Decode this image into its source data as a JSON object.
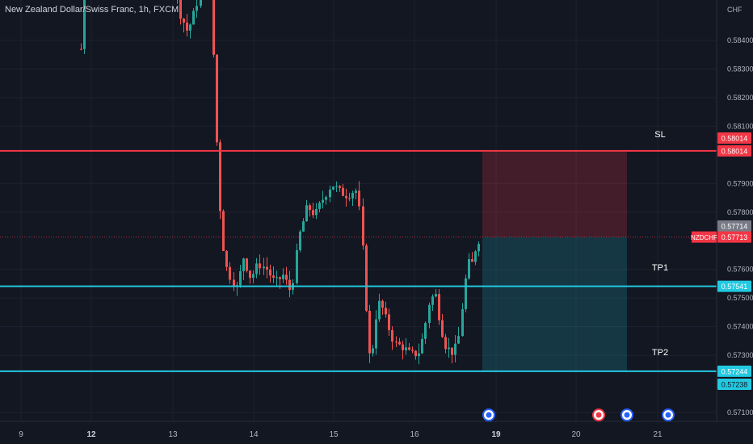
{
  "header": {
    "title": "New Zealand Dollar/Swiss Franc, 1h, FXCM"
  },
  "price_axis": {
    "currency": "CHF",
    "ticks": [
      "0.58400",
      "0.58300",
      "0.58200",
      "0.58100",
      "0.57900",
      "0.57800",
      "0.57600",
      "0.57500",
      "0.57400",
      "0.57300",
      "0.57100"
    ]
  },
  "time_axis": {
    "ticks": [
      {
        "label": "9",
        "bold": false
      },
      {
        "label": "12",
        "bold": true
      },
      {
        "label": "13",
        "bold": false
      },
      {
        "label": "14",
        "bold": false
      },
      {
        "label": "15",
        "bold": false
      },
      {
        "label": "16",
        "bold": false
      },
      {
        "label": "19",
        "bold": true
      },
      {
        "label": "20",
        "bold": false
      },
      {
        "label": "21",
        "bold": false
      }
    ]
  },
  "levels": [
    {
      "name": "SL",
      "price": 0.58014,
      "badge": "0.58014",
      "color": "#f23645"
    },
    {
      "name": "TP1",
      "price": 0.57541,
      "badge": "0.57541",
      "color": "#22c9e0"
    },
    {
      "name": "TP2",
      "price": 0.57244,
      "badge": "0.57244",
      "color": "#22c9e0"
    }
  ],
  "current": {
    "symbol": "NZDCHF",
    "price": 0.57713,
    "badge": "0.57713",
    "last_close": "0.57714"
  },
  "extra_badges": [
    {
      "badge": "0.58014",
      "price": 0.581,
      "color": "#f23645"
    },
    {
      "badge": "0.57238",
      "price": 0.5722,
      "color": "#22c9e0"
    }
  ],
  "colors": {
    "up": "#26a69a",
    "down": "#ef5350",
    "bg": "#131722",
    "grid": "#1f2433",
    "text": "#b2b5be"
  },
  "chart_data": {
    "type": "candlestick",
    "symbol": "NZDCHF",
    "timeframe": "1h",
    "x_categories": [
      "9",
      "12",
      "13",
      "14",
      "15",
      "16",
      "19",
      "20",
      "21"
    ],
    "ylim": [
      0.5705,
      0.5855
    ],
    "candles_visible_segments_approx": [
      {
        "segment": "12 rally",
        "close": 0.585
      },
      {
        "segment": "13 drop",
        "close": 0.58
      },
      {
        "segment": "14 low",
        "close": 0.5752
      },
      {
        "segment": "15 high",
        "close": 0.579
      },
      {
        "segment": "15-16 low",
        "close": 0.5724
      },
      {
        "segment": "16 rebound",
        "close": 0.5771
      }
    ]
  }
}
